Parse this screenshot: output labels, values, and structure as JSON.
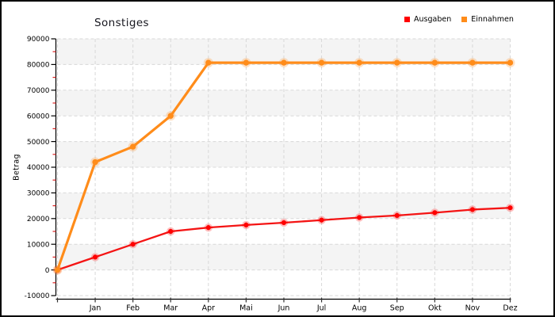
{
  "chart_data": {
    "type": "line",
    "title": "Sonstiges",
    "ylabel": "Betrag",
    "categories": [
      "",
      "Jan",
      "Feb",
      "Mar",
      "Apr",
      "Mai",
      "Jun",
      "Jul",
      "Aug",
      "Sep",
      "Okt",
      "Nov",
      "Dez"
    ],
    "ylim": [
      -10000,
      90000
    ],
    "ytick_step": 10000,
    "ytick_minor_step": 5000,
    "grid": "dashed",
    "legend_position": "top-right",
    "series": [
      {
        "name": "Ausgaben",
        "color": "#f41414",
        "marker_color": "#ff0000",
        "values": [
          0,
          5000,
          10000,
          15000,
          16500,
          17500,
          18400,
          19400,
          20400,
          21200,
          22300,
          23500,
          24200
        ]
      },
      {
        "name": "Einnahmen",
        "color": "#ff8c1a",
        "marker_color": "#ff8c1a",
        "values": [
          0,
          42000,
          48000,
          60000,
          80700,
          80700,
          80700,
          80700,
          80700,
          80700,
          80700,
          80700,
          80700
        ]
      }
    ],
    "colors": {
      "band_gray": "#f4f4f4",
      "band_white": "#ffffff",
      "gridline": "#d8d8d8",
      "axis": "#000000",
      "minor_tick": "#dd2222",
      "tick_text": "#000000"
    }
  }
}
